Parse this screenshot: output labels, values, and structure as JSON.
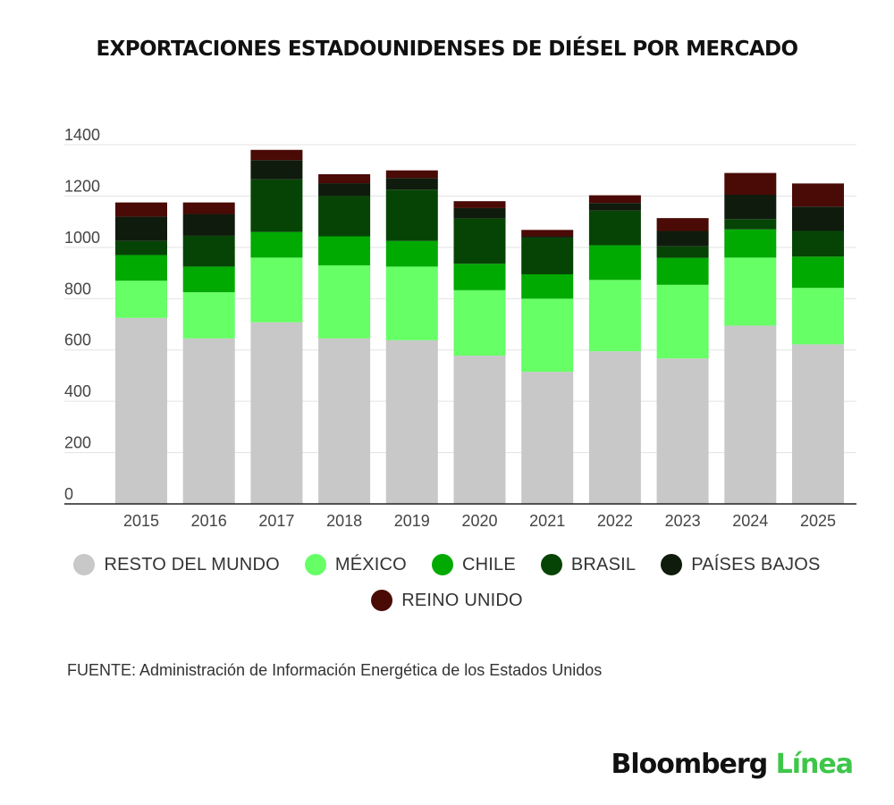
{
  "title": "EXPORTACIONES ESTADOUNIDENSES DE DIÉSEL POR MERCADO",
  "source": "FUENTE: Administración de Información Energética de los Estados Unidos",
  "logo": {
    "part1": "Bloomberg",
    "part2": "Línea"
  },
  "chart_data": {
    "type": "bar",
    "stacked": true,
    "categories": [
      "2015",
      "2016",
      "2017",
      "2018",
      "2019",
      "2020",
      "2021",
      "2022",
      "2023",
      "2024",
      "2025"
    ],
    "ylim": [
      0,
      1400
    ],
    "yticks": [
      "0",
      "200",
      "400",
      "600",
      "800",
      "1000",
      "1200",
      "1400"
    ],
    "grid": true,
    "legend_position": "bottom",
    "series": [
      {
        "name": "RESTO DEL MUNDO",
        "color": "#c8c8c8",
        "values": [
          725,
          645,
          708,
          645,
          638,
          578,
          515,
          595,
          567,
          695,
          622
        ]
      },
      {
        "name": "MÉXICO",
        "color": "#66ff66",
        "values": [
          145,
          180,
          252,
          285,
          287,
          255,
          285,
          278,
          287,
          265,
          220
        ]
      },
      {
        "name": "CHILE",
        "color": "#00aa00",
        "values": [
          100,
          100,
          100,
          113,
          100,
          103,
          95,
          135,
          105,
          110,
          122
        ]
      },
      {
        "name": "BRASIL",
        "color": "#064406",
        "values": [
          55,
          120,
          205,
          157,
          200,
          177,
          143,
          135,
          45,
          40,
          100
        ]
      },
      {
        "name": "PAÍSES BAJOS",
        "color": "#0f1b0c",
        "values": [
          95,
          85,
          75,
          50,
          45,
          40,
          5,
          30,
          60,
          95,
          95
        ]
      },
      {
        "name": "REINO UNIDO",
        "color": "#4a0a05",
        "values": [
          55,
          45,
          40,
          35,
          30,
          27,
          25,
          30,
          50,
          85,
          90
        ]
      }
    ]
  }
}
